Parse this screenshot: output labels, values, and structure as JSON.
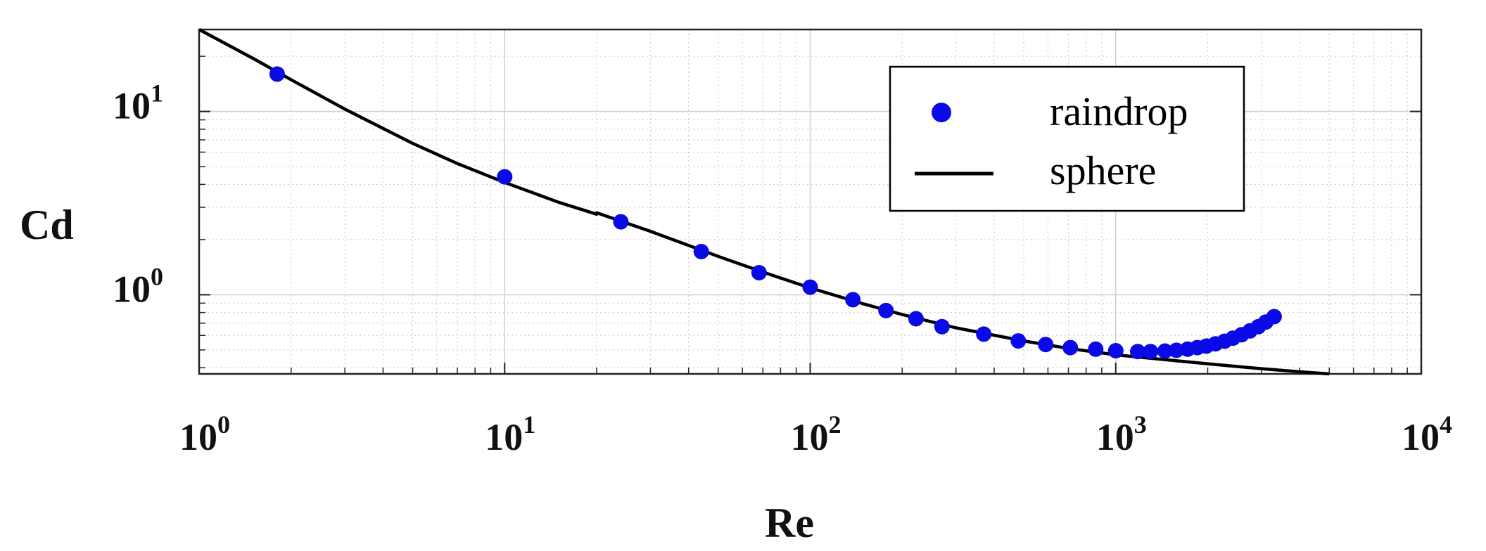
{
  "chart_data": {
    "type": "scatter",
    "title": "",
    "xlabel": "Re",
    "ylabel": "Cd",
    "xscale": "log",
    "yscale": "log",
    "xlim": [
      1,
      10000
    ],
    "ylim": [
      0.37,
      28
    ],
    "grid": true,
    "legend_position": "top-right",
    "x_tick_labels": [
      {
        "value": 1,
        "base": "10",
        "exp": "0"
      },
      {
        "value": 10,
        "base": "10",
        "exp": "1"
      },
      {
        "value": 100,
        "base": "10",
        "exp": "2"
      },
      {
        "value": 1000,
        "base": "10",
        "exp": "3"
      },
      {
        "value": 10000,
        "base": "10",
        "exp": "4"
      }
    ],
    "y_tick_labels": [
      {
        "value": 1,
        "base": "10",
        "exp": "0"
      },
      {
        "value": 10,
        "base": "10",
        "exp": "1"
      }
    ],
    "series": [
      {
        "name": "raindrop",
        "style": "markers",
        "color": "#0a0ae6",
        "x": [
          1.8,
          10,
          24,
          44,
          68,
          100,
          138,
          177,
          222,
          270,
          370,
          480,
          590,
          710,
          860,
          1000,
          1180,
          1300,
          1450,
          1580,
          1720,
          1850,
          1980,
          2120,
          2270,
          2420,
          2580,
          2750,
          2930,
          3100,
          3300
        ],
        "y": [
          16,
          4.4,
          2.5,
          1.72,
          1.32,
          1.1,
          0.94,
          0.82,
          0.74,
          0.67,
          0.61,
          0.56,
          0.535,
          0.515,
          0.505,
          0.495,
          0.49,
          0.49,
          0.493,
          0.498,
          0.505,
          0.515,
          0.525,
          0.54,
          0.558,
          0.58,
          0.605,
          0.635,
          0.67,
          0.71,
          0.76
        ]
      },
      {
        "name": "sphere",
        "style": "line",
        "color": "#000000",
        "x": [
          1,
          1.5,
          2,
          3,
          5,
          7,
          10,
          15,
          20,
          20,
          30,
          50,
          70,
          100,
          150,
          200,
          300,
          500,
          700,
          1000,
          1500,
          2000,
          3000,
          4000,
          5000
        ],
        "y": [
          28,
          19.5,
          14.9,
          10.3,
          6.7,
          5.2,
          4.1,
          3.2,
          2.75,
          2.8,
          2.22,
          1.62,
          1.33,
          1.09,
          0.89,
          0.78,
          0.66,
          0.56,
          0.51,
          0.47,
          0.44,
          0.42,
          0.395,
          0.38,
          0.37
        ]
      }
    ]
  }
}
